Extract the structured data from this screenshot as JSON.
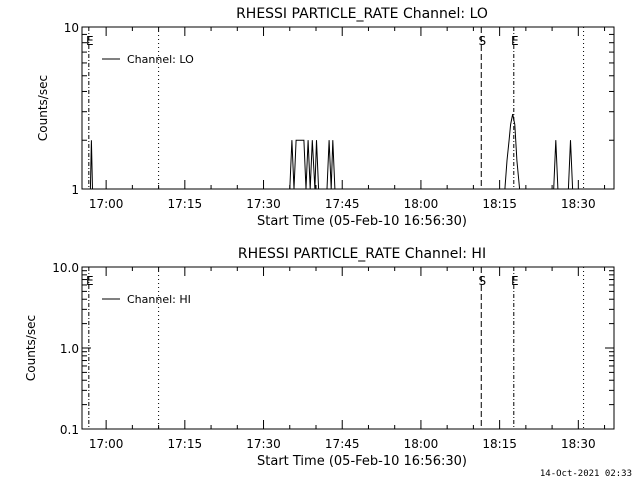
{
  "timestamp": "14-Oct-2021 02:33",
  "chart_data": [
    {
      "type": "line",
      "title": "RHESSI PARTICLE_RATE Channel: LO",
      "xlabel": "Start Time (05-Feb-10 16:56:30)",
      "ylabel": "Counts/sec",
      "y_scale": "log",
      "ylim": [
        1,
        10
      ],
      "y_ticks": [
        {
          "value": 1,
          "label": "1"
        },
        {
          "value": 10,
          "label": "10"
        }
      ],
      "x_ticks": [
        "17:00",
        "17:15",
        "17:30",
        "17:45",
        "18:00",
        "18:15",
        "18:30"
      ],
      "xlim_minutes": [
        16.9,
        117.5
      ],
      "legend": {
        "label": "Channel: LO",
        "position": "top-left"
      },
      "grid": false,
      "markers": [
        {
          "label": "E",
          "style": "dash-dot",
          "minute": 0.2
        },
        {
          "label": "",
          "style": "dotted",
          "minute": 13.5
        },
        {
          "label": "S",
          "style": "dashed",
          "minute": 75.0
        },
        {
          "label": "E",
          "style": "dash-dot",
          "minute": 81.2
        },
        {
          "label": "",
          "style": "dotted",
          "minute": 94.5
        }
      ],
      "series": [
        {
          "name": "Channel: LO",
          "points": [
            [
              0.0,
              1
            ],
            [
              0.5,
              1
            ],
            [
              0.7,
              2
            ],
            [
              0.9,
              1
            ],
            [
              38.5,
              1
            ],
            [
              38.9,
              2
            ],
            [
              39.3,
              1
            ],
            [
              39.7,
              2
            ],
            [
              40.1,
              2
            ],
            [
              41.2,
              2
            ],
            [
              41.6,
              1
            ],
            [
              42.0,
              2
            ],
            [
              42.4,
              1
            ],
            [
              42.8,
              2
            ],
            [
              43.3,
              1
            ],
            [
              43.6,
              2
            ],
            [
              44.0,
              1
            ],
            [
              45.6,
              1
            ],
            [
              46.0,
              2
            ],
            [
              46.4,
              1
            ],
            [
              46.7,
              2
            ],
            [
              47.1,
              1
            ],
            [
              79.0,
              1
            ],
            [
              79.5,
              1
            ],
            [
              79.9,
              1.5
            ],
            [
              80.3,
              2
            ],
            [
              80.6,
              2.5
            ],
            [
              81.0,
              2.9
            ],
            [
              81.4,
              2.5
            ],
            [
              81.8,
              1.5
            ],
            [
              82.3,
              1
            ],
            [
              88.8,
              1
            ],
            [
              89.2,
              2
            ],
            [
              89.6,
              1
            ],
            [
              91.6,
              1
            ],
            [
              92.0,
              2
            ],
            [
              92.4,
              1
            ],
            [
              95.0,
              1
            ]
          ]
        }
      ]
    },
    {
      "type": "line",
      "title": "RHESSI PARTICLE_RATE Channel: HI",
      "xlabel": "Start Time (05-Feb-10 16:56:30)",
      "ylabel": "Counts/sec",
      "y_scale": "log",
      "ylim": [
        0.1,
        10
      ],
      "y_ticks": [
        {
          "value": 0.1,
          "label": "0.1"
        },
        {
          "value": 1,
          "label": "1.0"
        },
        {
          "value": 10,
          "label": "10.0"
        }
      ],
      "x_ticks": [
        "17:00",
        "17:15",
        "17:30",
        "17:45",
        "18:00",
        "18:15",
        "18:30"
      ],
      "xlim_minutes": [
        16.9,
        117.5
      ],
      "legend": {
        "label": "Channel: HI",
        "position": "top-left"
      },
      "grid": false,
      "markers": [
        {
          "label": "E",
          "style": "dash-dot",
          "minute": 0.2
        },
        {
          "label": "",
          "style": "dotted",
          "minute": 13.5
        },
        {
          "label": "S",
          "style": "dashed",
          "minute": 75.0
        },
        {
          "label": "E",
          "style": "dash-dot",
          "minute": 81.2
        },
        {
          "label": "",
          "style": "dotted",
          "minute": 94.5
        }
      ],
      "series": [
        {
          "name": "Channel: HI",
          "points": []
        }
      ]
    }
  ]
}
